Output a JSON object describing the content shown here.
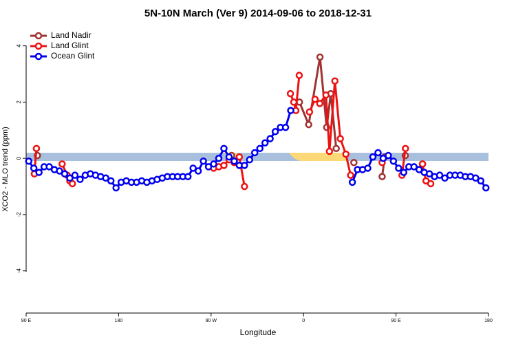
{
  "chart_data": {
    "type": "line",
    "title": "5N-10N March (Ver 9)   2014-09-06 to 2018-12-31",
    "x_label": "Longitude",
    "y_label": "XCO2 - MLO trend (ppm)",
    "xlim": [
      90,
      540
    ],
    "ylim": [
      -5.5,
      4.7
    ],
    "xticks": [
      {
        "value": 90,
        "label": "90 E"
      },
      {
        "value": 180,
        "label": "180"
      },
      {
        "value": 270,
        "label": "90 W"
      },
      {
        "value": 360,
        "label": "0"
      },
      {
        "value": 450,
        "label": "90 E"
      },
      {
        "value": 540,
        "label": "180"
      }
    ],
    "yticks": [
      -4,
      -2,
      0,
      2,
      4
    ],
    "legend": "top-left",
    "series": [
      {
        "name": "Land Nadir",
        "color": "#a03232",
        "x": [
          101,
          null,
          290,
          null,
          356,
          365,
          376,
          382.5,
          386.5,
          391.8,
          null,
          409,
          null,
          436.5,
          439,
          null,
          459,
          null,
          475.8
        ],
        "values": [
          0.1,
          null,
          0.1,
          null,
          2.0,
          1.2,
          3.6,
          1.1,
          2.3,
          0.35,
          null,
          -0.15,
          null,
          -0.65,
          0.05,
          null,
          0.1,
          null,
          -0.2
        ]
      },
      {
        "name": "Land Glint",
        "color": "#ee1111",
        "x": [
          98,
          100,
          null,
          125,
          130,
          132.5,
          135,
          null,
          272.5,
          277.5,
          282.5,
          287.5,
          292.5,
          297.5,
          302.5,
          null,
          347.2,
          350.5,
          352.5,
          355.8,
          null,
          365.8,
          371.2,
          375.8,
          381.8,
          385.2,
          390.5,
          395.8,
          401.2,
          405.8,
          null,
          436.5,
          null,
          455.8,
          459.2,
          null,
          475.8,
          479.2,
          483.8
        ],
        "values": [
          -0.55,
          0.35,
          null,
          -0.2,
          -0.6,
          -0.8,
          -0.9,
          null,
          -0.35,
          -0.3,
          -0.25,
          -0.05,
          -0.15,
          0.05,
          -1.0,
          null,
          2.3,
          2.0,
          1.7,
          2.95,
          null,
          1.65,
          2.1,
          1.95,
          2.25,
          0.25,
          2.75,
          0.7,
          0.15,
          -0.6,
          null,
          -0.15,
          null,
          -0.6,
          0.35,
          null,
          -0.2,
          -0.8,
          -0.9
        ]
      },
      {
        "name": "Ocean Glint",
        "color": "#0000ee",
        "x": [
          92.5,
          97.5,
          102.5,
          107.5,
          112.5,
          117.5,
          122.5,
          127.5,
          132.5,
          137.5,
          142.5,
          147.5,
          152.5,
          157.5,
          162.5,
          167.5,
          172.5,
          177.5,
          182.5,
          187.5,
          192.5,
          197.5,
          202.5,
          207.5,
          212.5,
          217.5,
          222.5,
          227.5,
          232.5,
          237.5,
          242.5,
          247.5,
          252.5,
          257.5,
          262.5,
          267.5,
          272.5,
          277.5,
          282.5,
          287.5,
          292.5,
          297.5,
          302.5,
          307.5,
          312.5,
          317.5,
          322.5,
          327.5,
          332.5,
          337.5,
          342.5,
          347.5,
          377.5,
          407.5,
          412.5,
          417.5,
          422.5,
          427.5,
          432.5,
          437.5,
          442.5,
          447.5,
          452.5,
          457.5,
          462.5,
          467.5,
          472.5,
          477.5,
          482.5,
          487.5,
          492.5,
          497.5,
          502.5,
          507.5,
          512.5,
          517.5,
          522.5,
          527.5,
          532.5,
          537.5
        ],
        "values": [
          -0.1,
          -0.35,
          -0.5,
          -0.3,
          -0.3,
          -0.4,
          -0.45,
          -0.55,
          -0.7,
          -0.6,
          -0.75,
          -0.6,
          -0.55,
          -0.6,
          -0.65,
          -0.7,
          -0.8,
          -1.05,
          -0.85,
          -0.8,
          -0.85,
          -0.85,
          -0.8,
          -0.85,
          -0.8,
          -0.75,
          -0.7,
          -0.65,
          -0.65,
          -0.65,
          -0.65,
          -0.65,
          -0.35,
          -0.45,
          -0.1,
          -0.3,
          -0.2,
          0.0,
          0.35,
          0.05,
          -0.1,
          -0.25,
          -0.25,
          -0.05,
          0.2,
          0.35,
          0.55,
          0.7,
          0.95,
          1.1,
          1.1,
          1.7,
          null,
          -0.85,
          -0.4,
          -0.4,
          -0.35,
          0.05,
          0.2,
          0.0,
          0.1,
          -0.1,
          -0.35,
          -0.5,
          -0.3,
          -0.3,
          -0.4,
          -0.5,
          -0.55,
          -0.65,
          -0.6,
          -0.7,
          -0.6,
          -0.6,
          -0.6,
          -0.65,
          -0.65,
          -0.7,
          -0.8,
          -1.05
        ]
      }
    ]
  }
}
